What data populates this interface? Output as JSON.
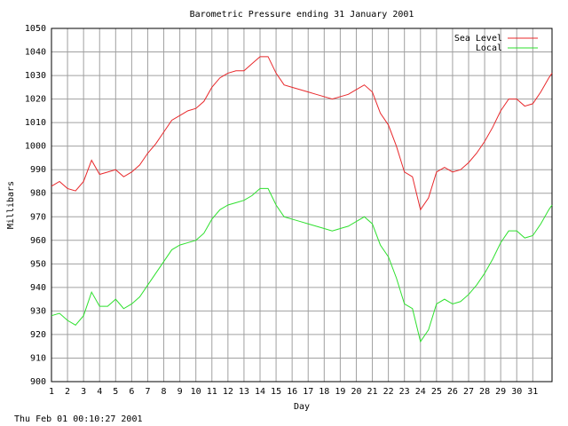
{
  "chart_data": {
    "type": "line",
    "title": "Barometric Pressure ending 31 January 2001",
    "x_label": "Day",
    "y_label": "Millibars",
    "footer": "Thu Feb 01 00:10:27 2001",
    "x": [
      1,
      1.5,
      2,
      2.5,
      3,
      3.5,
      4,
      4.5,
      5,
      5.5,
      6,
      6.5,
      7,
      7.5,
      8,
      8.5,
      9,
      9.5,
      10,
      10.5,
      11,
      11.5,
      12,
      12.5,
      13,
      13.5,
      14,
      14.5,
      15,
      15.5,
      16,
      16.5,
      17,
      17.5,
      18,
      18.5,
      19,
      19.5,
      20,
      20.5,
      21,
      21.5,
      22,
      22.5,
      23,
      23.5,
      24,
      24.5,
      25,
      25.5,
      26,
      26.5,
      27,
      27.5,
      28,
      28.5,
      29,
      29.5,
      30,
      30.5,
      31,
      31.5,
      32,
      32.2
    ],
    "series": [
      {
        "name": "Sea Level",
        "color": "#e8282b",
        "values": [
          983,
          985,
          982,
          981,
          985,
          994,
          988,
          989,
          990,
          987,
          989,
          992,
          997,
          1001,
          1006,
          1011,
          1013,
          1015,
          1016,
          1019,
          1025,
          1029,
          1031,
          1032,
          1032,
          1035,
          1038,
          1038,
          1031,
          1026,
          1025,
          1024,
          1023,
          1022,
          1021,
          1020,
          1021,
          1022,
          1024,
          1026,
          1023,
          1014,
          1009,
          1000,
          989,
          987,
          973,
          978,
          989,
          991,
          989,
          990,
          993,
          997,
          1002,
          1008,
          1015,
          1020,
          1020,
          1017,
          1018,
          1023,
          1029,
          1031
        ]
      },
      {
        "name": "Local",
        "color": "#2ee02e",
        "values": [
          928,
          929,
          926,
          924,
          928,
          938,
          932,
          932,
          935,
          931,
          933,
          936,
          941,
          946,
          951,
          956,
          958,
          959,
          960,
          963,
          969,
          973,
          975,
          976,
          977,
          979,
          982,
          982,
          975,
          970,
          969,
          968,
          967,
          966,
          965,
          964,
          965,
          966,
          968,
          970,
          967,
          958,
          953,
          944,
          933,
          931,
          917,
          922,
          933,
          935,
          933,
          934,
          937,
          941,
          946,
          952,
          959,
          964,
          964,
          961,
          962,
          967,
          973,
          975
        ]
      }
    ],
    "xlim": [
      1,
      32.2
    ],
    "xticks": [
      1,
      2,
      3,
      4,
      5,
      6,
      7,
      8,
      9,
      10,
      11,
      12,
      13,
      14,
      15,
      16,
      17,
      18,
      19,
      20,
      21,
      22,
      23,
      24,
      25,
      26,
      27,
      28,
      29,
      30,
      31
    ],
    "ylim": [
      900,
      1050
    ],
    "yticks": [
      900,
      910,
      920,
      930,
      940,
      950,
      960,
      970,
      980,
      990,
      1000,
      1010,
      1020,
      1030,
      1040,
      1050
    ],
    "grid": true,
    "legend": "upper right"
  }
}
